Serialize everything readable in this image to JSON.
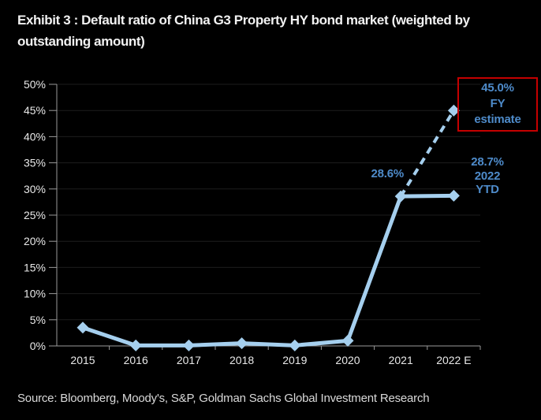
{
  "title_lines": [
    "Exhibit 3 : Default ratio of China G3 Property HY bond market (weighted by",
    "outstanding amount)"
  ],
  "source": "Source: Bloomberg, Moody's, S&P, Goldman Sachs Global Investment Research",
  "colors": {
    "background": "#000000",
    "title_text": "#f2f2f2",
    "line": "#a5cfee",
    "annotation_text": "#4e8bca",
    "estimate_box_border": "#c40000",
    "axis": "#9a9a9a",
    "gridline": "#1d1d1d",
    "tick_label": "#e9e9e9",
    "source_text": "#d9d9d9"
  },
  "chart_data": {
    "type": "line",
    "title": "Default ratio of China G3 Property HY bond market (weighted by outstanding amount)",
    "categories": [
      "2015",
      "2016",
      "2017",
      "2018",
      "2019",
      "2020",
      "2021",
      "2022 E"
    ],
    "series": [
      {
        "name": "Default ratio (actual, solid line)",
        "style": "solid",
        "values": [
          3.5,
          0.1,
          0.1,
          0.5,
          0.1,
          1.0,
          28.6,
          28.7
        ]
      },
      {
        "name": "FY estimate (dashed projection)",
        "style": "dashed",
        "from_category": "2021",
        "to_category": "2022 E",
        "values": [
          28.6,
          45.0
        ]
      }
    ],
    "ylim": [
      0,
      50
    ],
    "ytick_labels": [
      "0%",
      "5%",
      "10%",
      "15%",
      "20%",
      "25%",
      "30%",
      "35%",
      "40%",
      "45%",
      "50%"
    ],
    "grid": "horizontal-faint",
    "legend": "none",
    "marker": "diamond",
    "annotations": {
      "point_2021": {
        "text": "28.6%"
      },
      "fy_estimate": {
        "lines": [
          "45.0%",
          "FY",
          "estimate"
        ],
        "boxed": true
      },
      "ytd_2022": {
        "lines": [
          "28.7%",
          "2022",
          "YTD"
        ]
      }
    }
  }
}
